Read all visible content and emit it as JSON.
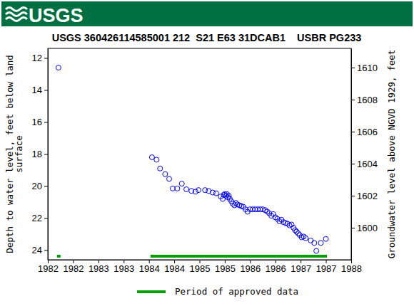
{
  "banner": {
    "logo_text": "USGS"
  },
  "chart_data": {
    "type": "scatter",
    "title": "USGS 360426114585001 212  S21 E63 31DCAB1    USBR PG233",
    "y_label": [
      "Depth to water level, feet below land",
      "surface"
    ],
    "y2_label": "Groundwater level above NGVD 1929, feet",
    "xlim": [
      1982.0,
      1988.0
    ],
    "xticks": [
      {
        "value": 1982.0,
        "label": "1982"
      },
      {
        "value": 1982.5,
        "label": "1982"
      },
      {
        "value": 1983.0,
        "label": "1983"
      },
      {
        "value": 1983.5,
        "label": "1983"
      },
      {
        "value": 1984.0,
        "label": "1984"
      },
      {
        "value": 1984.5,
        "label": "1984"
      },
      {
        "value": 1985.0,
        "label": "1985"
      },
      {
        "value": 1985.5,
        "label": "1985"
      },
      {
        "value": 1986.0,
        "label": "1986"
      },
      {
        "value": 1986.5,
        "label": "1986"
      },
      {
        "value": 1987.0,
        "label": "1987"
      },
      {
        "value": 1987.5,
        "label": "1987"
      },
      {
        "value": 1988.0,
        "label": "1988"
      }
    ],
    "ylim": [
      24.6,
      11.4
    ],
    "yticks": [
      12,
      14,
      16,
      18,
      20,
      22,
      24
    ],
    "y2lim": [
      1598.0,
      1611.2
    ],
    "y2ticks": [
      1600,
      1602,
      1604,
      1606,
      1608,
      1610
    ],
    "grid": false,
    "legend": "bottom",
    "series": [
      {
        "type": "scatter",
        "marker": "circle",
        "color": "#0000ff",
        "x": [
          1982.21,
          1984.06,
          1984.15,
          1984.22,
          1984.32,
          1984.4,
          1984.47,
          1984.56,
          1984.65,
          1984.74,
          1984.84,
          1984.92,
          1984.98,
          1985.11,
          1985.18,
          1985.26,
          1985.33,
          1985.42,
          1985.46,
          1985.48,
          1985.5,
          1985.52,
          1985.54,
          1985.56,
          1985.58,
          1985.6,
          1985.63,
          1985.66,
          1985.69,
          1985.72,
          1985.75,
          1985.79,
          1985.83,
          1985.87,
          1985.91,
          1985.95,
          1986.0,
          1986.05,
          1986.1,
          1986.15,
          1986.2,
          1986.25,
          1986.3,
          1986.34,
          1986.38,
          1986.42,
          1986.46,
          1986.5,
          1986.54,
          1986.58,
          1986.62,
          1986.66,
          1986.7,
          1986.74,
          1986.78,
          1986.82,
          1986.86,
          1986.89,
          1986.92,
          1986.95,
          1986.98,
          1987.02,
          1987.06,
          1987.1,
          1987.2,
          1987.27,
          1987.31,
          1987.4,
          1987.5
        ],
        "values": [
          12.6,
          18.2,
          18.35,
          18.9,
          19.25,
          19.55,
          20.15,
          20.15,
          19.85,
          20.2,
          20.3,
          20.35,
          20.25,
          20.25,
          20.3,
          20.4,
          20.45,
          20.65,
          20.8,
          20.55,
          20.5,
          20.6,
          20.5,
          20.7,
          20.6,
          20.8,
          20.95,
          21.1,
          21.2,
          21.05,
          21.15,
          21.2,
          21.25,
          21.3,
          21.45,
          21.6,
          21.45,
          21.45,
          21.45,
          21.45,
          21.45,
          21.45,
          21.5,
          21.6,
          21.7,
          21.85,
          21.75,
          21.95,
          22.05,
          22.2,
          22.1,
          22.25,
          22.3,
          22.35,
          22.45,
          22.4,
          22.6,
          22.75,
          22.85,
          22.95,
          23.05,
          23.2,
          23.15,
          23.25,
          23.4,
          23.55,
          24.05,
          23.55,
          23.3
        ]
      },
      {
        "type": "span",
        "name": "Period of approved data",
        "color": "#00a000",
        "x": [
          1982.18,
          1984.03
        ],
        "x_end": [
          1982.25,
          1987.52
        ]
      }
    ]
  }
}
